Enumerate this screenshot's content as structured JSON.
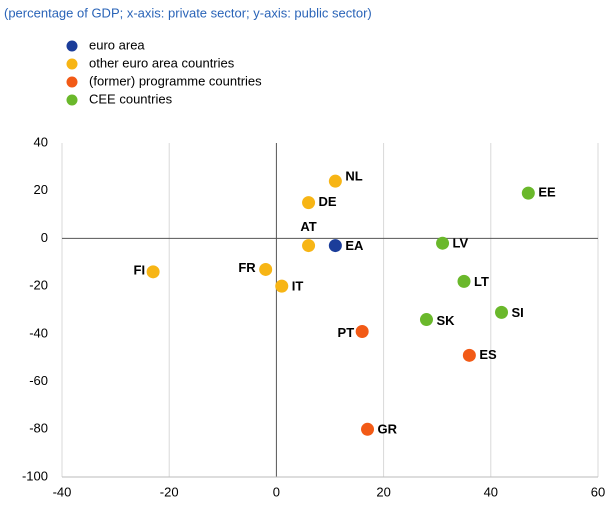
{
  "chart_data": {
    "type": "scatter",
    "subtitle": "(percentage of GDP; x-axis: private sector; y-axis: public sector)",
    "xlim": [
      -40,
      60
    ],
    "xticks": [
      -40,
      -20,
      0,
      20,
      40,
      60
    ],
    "ylim": [
      -100,
      40
    ],
    "yticks": [
      -100,
      -80,
      -60,
      -40,
      -20,
      0,
      20,
      40
    ],
    "grid": "x",
    "series": [
      {
        "name": "euro area",
        "color": "#1b3d9a",
        "labels": [
          "EA"
        ],
        "x": [
          11
        ],
        "values": [
          -3
        ]
      },
      {
        "name": "other euro area countries",
        "color": "#f7b515",
        "labels": [
          "NL",
          "DE",
          "AT",
          "FR",
          "IT",
          "FI"
        ],
        "x": [
          11,
          6,
          6,
          -2,
          1,
          -23
        ],
        "values": [
          24,
          15,
          -3,
          -13,
          -20,
          -14
        ]
      },
      {
        "name": "(former) programme countries",
        "color": "#f25a16",
        "labels": [
          "PT",
          "GR",
          "ES"
        ],
        "x": [
          16,
          17,
          36
        ],
        "values": [
          -39,
          -80,
          -49
        ]
      },
      {
        "name": "CEE countries",
        "color": "#6ab82b",
        "labels": [
          "EE",
          "LV",
          "LT",
          "SK",
          "SI"
        ],
        "x": [
          47,
          31,
          35,
          28,
          42
        ],
        "values": [
          19,
          -2,
          -18,
          -34,
          -31
        ]
      }
    ]
  }
}
